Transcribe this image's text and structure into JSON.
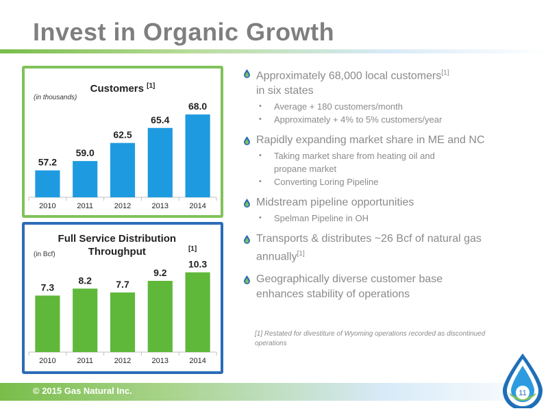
{
  "slide": {
    "title": "Invest in Organic Growth",
    "footer": "© 2015 Gas Natural Inc.",
    "page_number": "11"
  },
  "bullets": [
    {
      "text": "Approximately 68,000 local customers",
      "sup": "[1]",
      "text2": "in six states",
      "subs": [
        "Average + 180 customers/month",
        "Approximately + 4% to 5% customers/year"
      ]
    },
    {
      "text": "Rapidly expanding market share in ME and NC",
      "sup": "",
      "text2": "",
      "subs": [
        "Taking market share from heating oil and propane market",
        "Converting Loring Pipeline"
      ]
    },
    {
      "text": "Midstream pipeline opportunities",
      "sup": "",
      "text2": "",
      "subs": [
        "Spelman Pipeline in OH"
      ]
    },
    {
      "text": "Transports & distributes ~26 Bcf of natural gas annually",
      "sup": "[1]",
      "text2": "",
      "subs": []
    },
    {
      "text": "Geographically diverse customer base enhances stability of operations",
      "sup": "",
      "text2": "",
      "subs": []
    }
  ],
  "footnote": "[1] Restated for divestiture of Wyoming operations recorded as discontinued operations",
  "colors": {
    "green": "#80c25a",
    "blue": "#2b6cb8",
    "customer_bar": "#1e9be0",
    "throughput_bar": "#5fb83a",
    "text_gray": "#8a8a8a"
  },
  "chart_data": [
    {
      "id": "customers",
      "type": "bar",
      "title": "Customers",
      "title_sup": "[1]",
      "unit": "(in thousands)",
      "categories": [
        "2010",
        "2011",
        "2012",
        "2013",
        "2014"
      ],
      "values": [
        57.2,
        59.0,
        62.5,
        65.4,
        68.0
      ],
      "labels": [
        "57.2",
        "59.0",
        "62.5",
        "65.4",
        "68.0"
      ],
      "ylim": [
        52,
        70
      ],
      "grid": false,
      "legend": "none"
    },
    {
      "id": "throughput",
      "type": "bar",
      "title": "Full Service Distribution Throughput",
      "title_sup": "[1]",
      "unit": "(in Bcf)",
      "categories": [
        "2010",
        "2011",
        "2012",
        "2013",
        "2014"
      ],
      "values": [
        7.3,
        8.2,
        7.7,
        9.2,
        10.3
      ],
      "labels": [
        "7.3",
        "8.2",
        "7.7",
        "9.2",
        "10.3"
      ],
      "ylim": [
        0,
        11.5
      ],
      "grid": false,
      "legend": "none"
    }
  ]
}
